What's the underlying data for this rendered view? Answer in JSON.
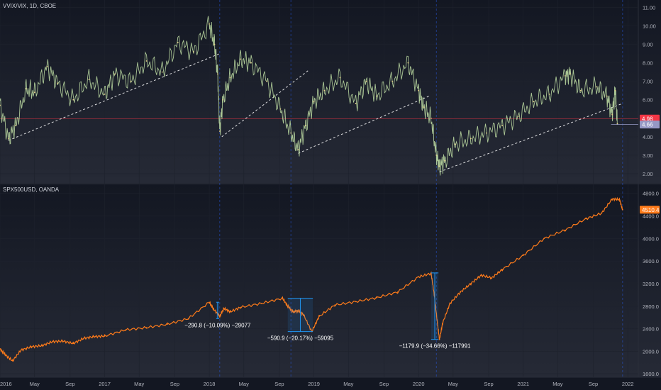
{
  "top_panel": {
    "label": "VVIX/VIX, 1D, CBOE"
  },
  "bottom_panel": {
    "label": "SPX500USD, OANDA"
  },
  "chart_data": [
    {
      "type": "line",
      "title": "VVIX/VIX, 1D, CBOE",
      "ylim": [
        1.5,
        11.4
      ],
      "y_ticks": [
        "11.00",
        "10.00",
        "9.00",
        "8.00",
        "7.00",
        "6.00",
        "5.00",
        "4.00",
        "3.00",
        "2.00"
      ],
      "y_tick_values": [
        11,
        10,
        9,
        8,
        7,
        6,
        5,
        4,
        3,
        2
      ],
      "x": [
        2016.0,
        2016.08,
        2016.15,
        2016.25,
        2016.33,
        2016.45,
        2016.55,
        2016.7,
        2016.85,
        2017.0,
        2017.1,
        2017.25,
        2017.4,
        2017.55,
        2017.7,
        2017.85,
        2018.0,
        2018.05,
        2018.08,
        2018.1,
        2018.13,
        2018.2,
        2018.3,
        2018.4,
        2018.55,
        2018.68,
        2018.78,
        2018.85,
        2018.92,
        2019.0,
        2019.1,
        2019.25,
        2019.4,
        2019.5,
        2019.6,
        2019.75,
        2019.9,
        2020.0,
        2020.05,
        2020.12,
        2020.17,
        2020.2,
        2020.25,
        2020.35,
        2020.5,
        2020.65,
        2020.8,
        2020.95,
        2021.1,
        2021.25,
        2021.4,
        2021.45,
        2021.55,
        2021.7,
        2021.8,
        2021.85,
        2021.88,
        2021.9
      ],
      "y": [
        5.7,
        3.9,
        4.6,
        6.6,
        6.4,
        7.8,
        6.9,
        6.0,
        7.1,
        6.3,
        7.4,
        7.0,
        8.1,
        7.5,
        9.1,
        8.6,
        10.1,
        9.0,
        7.4,
        4.3,
        6.0,
        7.2,
        8.2,
        8.0,
        7.0,
        5.5,
        4.2,
        3.3,
        4.6,
        5.9,
        6.5,
        7.2,
        5.8,
        7.0,
        6.2,
        7.0,
        8.0,
        6.5,
        5.6,
        5.0,
        3.0,
        2.4,
        2.7,
        3.6,
        3.9,
        4.2,
        4.6,
        5.1,
        5.9,
        6.3,
        7.3,
        7.4,
        6.5,
        6.7,
        6.2,
        5.2,
        6.5,
        4.7
      ],
      "trendlines": [
        {
          "x": [
            2016.08,
            2018.1
          ],
          "y": [
            3.8,
            8.5
          ]
        },
        {
          "x": [
            2018.12,
            2018.95
          ],
          "y": [
            4.0,
            7.6
          ]
        },
        {
          "x": [
            2018.85,
            2020.1
          ],
          "y": [
            3.1,
            6.2
          ]
        },
        {
          "x": [
            2020.2,
            2021.95
          ],
          "y": [
            2.1,
            5.8
          ]
        }
      ],
      "hline": {
        "y": 4.98
      },
      "price_badges": [
        {
          "label": "4.98",
          "value": 4.98,
          "color": "#f23645"
        },
        {
          "label": "4.66",
          "value": 4.66,
          "color": "#9598c4"
        }
      ]
    },
    {
      "type": "line",
      "title": "SPX500USD, OANDA",
      "ylim": [
        1540,
        4960
      ],
      "y_ticks": [
        "4800.0",
        "4400.0",
        "4000.0",
        "3600.0",
        "3200.0",
        "2800.0",
        "2400.0",
        "2000.0",
        "1600.0"
      ],
      "y_tick_values": [
        4800,
        4400,
        4000,
        3600,
        3200,
        2800,
        2400,
        2000,
        1600
      ],
      "x": [
        2016.0,
        2016.05,
        2016.12,
        2016.2,
        2016.3,
        2016.4,
        2016.5,
        2016.6,
        2016.7,
        2016.8,
        2016.9,
        2017.0,
        2017.2,
        2017.4,
        2017.6,
        2017.8,
        2018.0,
        2018.04,
        2018.1,
        2018.14,
        2018.2,
        2018.3,
        2018.5,
        2018.7,
        2018.75,
        2018.8,
        2018.85,
        2018.9,
        2018.98,
        2019.05,
        2019.2,
        2019.4,
        2019.6,
        2019.8,
        2020.0,
        2020.12,
        2020.15,
        2020.18,
        2020.2,
        2020.23,
        2020.3,
        2020.4,
        2020.5,
        2020.6,
        2020.7,
        2020.8,
        2021.0,
        2021.2,
        2021.4,
        2021.6,
        2021.75,
        2021.85,
        2021.92,
        2021.95
      ],
      "y": [
        2040,
        1940,
        1830,
        2020,
        2080,
        2100,
        2170,
        2180,
        2140,
        2230,
        2260,
        2270,
        2380,
        2420,
        2480,
        2580,
        2870,
        2750,
        2620,
        2760,
        2700,
        2780,
        2850,
        2940,
        2800,
        2700,
        2720,
        2650,
        2350,
        2620,
        2820,
        2880,
        2950,
        3050,
        3320,
        3380,
        3000,
        2500,
        2210,
        2500,
        2850,
        3050,
        3200,
        3350,
        3300,
        3450,
        3700,
        4000,
        4150,
        4350,
        4450,
        4700,
        4690,
        4510
      ],
      "drawdowns": [
        {
          "label": "−290.8 (−10.09%) −29077",
          "x": 2018.08,
          "top": 2870,
          "bottom": 2580
        },
        {
          "label": "−590.9 (−20.17%) −59095",
          "x0": 2018.75,
          "x1": 2018.99,
          "top": 2940,
          "bottom": 2350
        },
        {
          "label": "−1179.9 (−34.66%) −117991",
          "x0": 2020.12,
          "x1": 2020.19,
          "top": 3390,
          "bottom": 2210
        }
      ],
      "price_badges": [
        {
          "label": "4510.4",
          "value": 4510.4,
          "color": "#ff7b1a"
        }
      ]
    }
  ],
  "x_axis": {
    "range": [
      2016.0,
      2022.1
    ],
    "ticks": [
      {
        "label": "2016",
        "x": 2016.0
      },
      {
        "label": "May",
        "x": 2016.33
      },
      {
        "label": "Sep",
        "x": 2016.67
      },
      {
        "label": "2017",
        "x": 2017.0
      },
      {
        "label": "May",
        "x": 2017.33
      },
      {
        "label": "Sep",
        "x": 2017.67
      },
      {
        "label": "2018",
        "x": 2018.0
      },
      {
        "label": "May",
        "x": 2018.33
      },
      {
        "label": "Sep",
        "x": 2018.67
      },
      {
        "label": "2019",
        "x": 2019.0
      },
      {
        "label": "May",
        "x": 2019.33
      },
      {
        "label": "Sep",
        "x": 2019.67
      },
      {
        "label": "2020",
        "x": 2020.0
      },
      {
        "label": "May",
        "x": 2020.33
      },
      {
        "label": "Sep",
        "x": 2020.67
      },
      {
        "label": "2021",
        "x": 2021.0
      },
      {
        "label": "May",
        "x": 2021.33
      },
      {
        "label": "Sep",
        "x": 2021.67
      },
      {
        "label": "2022",
        "x": 2022.0
      }
    ],
    "vertical_markers": [
      2018.1,
      2018.78,
      2020.17,
      2021.95
    ]
  },
  "colors": {
    "background": "#131722",
    "grid": "#1e222d",
    "vvix_line": "#b9d7a0",
    "spx_line": "#ff7b1a",
    "trendline": "#ffffff",
    "hline": "#f23645",
    "marker": "#2962ff",
    "drawdown": "#2196f3"
  }
}
